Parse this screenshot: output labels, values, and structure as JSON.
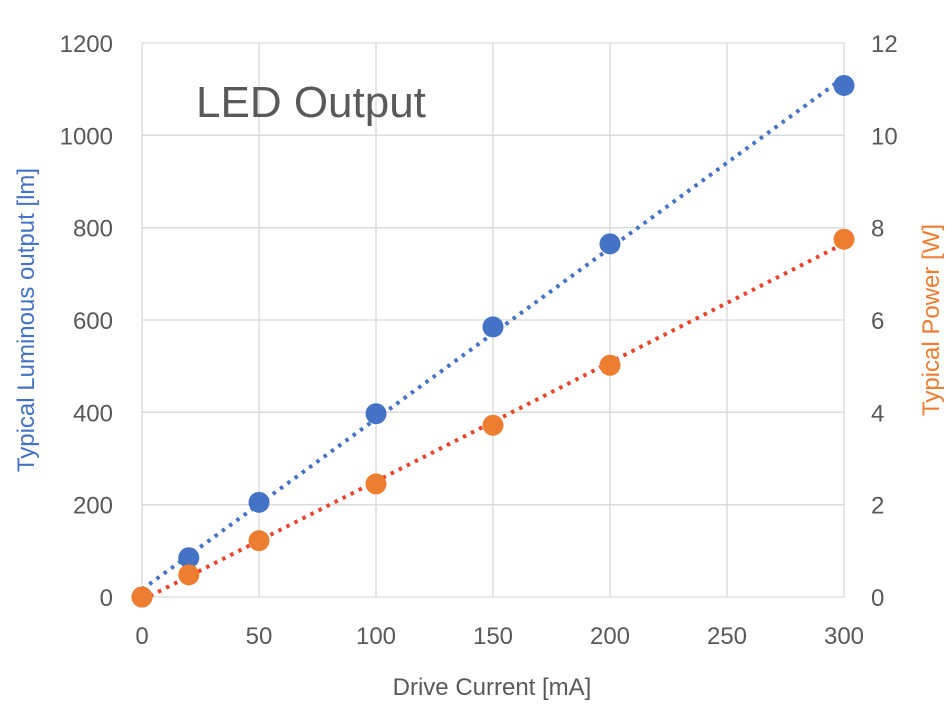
{
  "chart_data": {
    "type": "scatter",
    "title": "LED Output",
    "xlabel": "Drive Current [mA]",
    "ylabel": "Typical Luminous output [lm]",
    "y2label": "Typical Power [W]",
    "xlim": [
      0,
      300
    ],
    "ylim": [
      0,
      1200
    ],
    "y2lim": [
      0,
      12
    ],
    "x_ticks": [
      "0",
      "50",
      "100",
      "150",
      "200",
      "250",
      "300"
    ],
    "y_ticks": [
      "0",
      "200",
      "400",
      "600",
      "800",
      "1000",
      "1200"
    ],
    "y2_ticks": [
      "0",
      "2",
      "4",
      "6",
      "8",
      "10",
      "12"
    ],
    "grid": true,
    "trendlines": "linear, dotted",
    "series": [
      {
        "axis": "left",
        "color": "#4472C4",
        "x": [
          0,
          20,
          50,
          100,
          150,
          200,
          300
        ],
        "y": [
          0,
          85,
          205,
          397,
          585,
          765,
          1108
        ]
      },
      {
        "axis": "right",
        "color": "#ED7D31",
        "x": [
          0,
          20,
          50,
          100,
          150,
          200,
          300
        ],
        "y": [
          0,
          0.48,
          1.22,
          2.45,
          3.72,
          5.02,
          7.75
        ]
      }
    ],
    "y_label_color": "#4472C4",
    "y2_label_color": "#ED7D31",
    "trend_color_right": "#E8452A"
  }
}
